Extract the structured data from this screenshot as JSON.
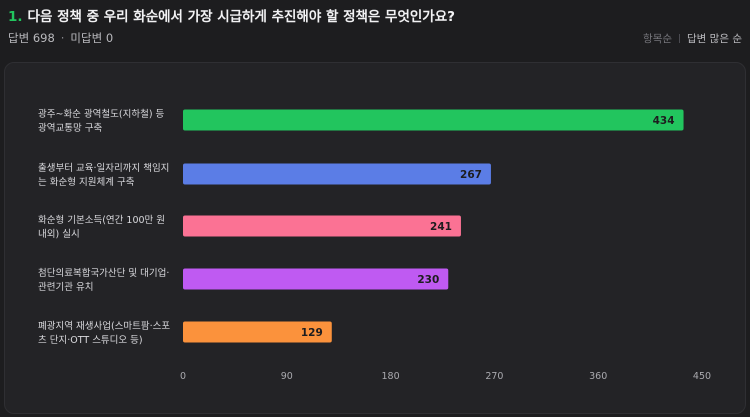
{
  "header": {
    "number": "1.",
    "question": "다음 정책 중 우리 화순에서 가장 시급하게 추진해야 할 정책은 무엇인가요?",
    "answers": "답변 698",
    "separator": "·",
    "unanswered": "미답변 0"
  },
  "sort": {
    "item_order": "항목순",
    "most_answers": "답변 많은 순"
  },
  "colors": {
    "accent": "#22c55e",
    "bar_green": "#22c55e",
    "bar_blue": "#5b7de6",
    "bar_pink": "#fb7294",
    "bar_purple": "#bf5af2",
    "bar_orange": "#fb923c"
  },
  "chart_data": {
    "type": "bar",
    "orientation": "horizontal",
    "categories": [
      [
        "광주~화순 광역철도(지하철) 등",
        "광역교통망 구축"
      ],
      [
        "출생부터 교육·일자리까지 책임지",
        "는 화순형 지원체계 구축"
      ],
      [
        "화순형 기본소득(연간 100만 원",
        "내외) 실시"
      ],
      [
        "첨단의료복합국가산단 및 대기업·",
        "관련기관 유치"
      ],
      [
        "폐광지역 재생사업(스마트팜·스포",
        "츠 단지·OTT 스튜디오 등)"
      ]
    ],
    "values": [
      434,
      267,
      241,
      230,
      129
    ],
    "bar_colors": [
      "#22c55e",
      "#5b7de6",
      "#fb7294",
      "#bf5af2",
      "#fb923c"
    ],
    "xlim": [
      0,
      450
    ],
    "xticks": [
      0,
      90,
      180,
      270,
      360,
      450
    ],
    "grid": false,
    "value_labels": "inside-end"
  }
}
